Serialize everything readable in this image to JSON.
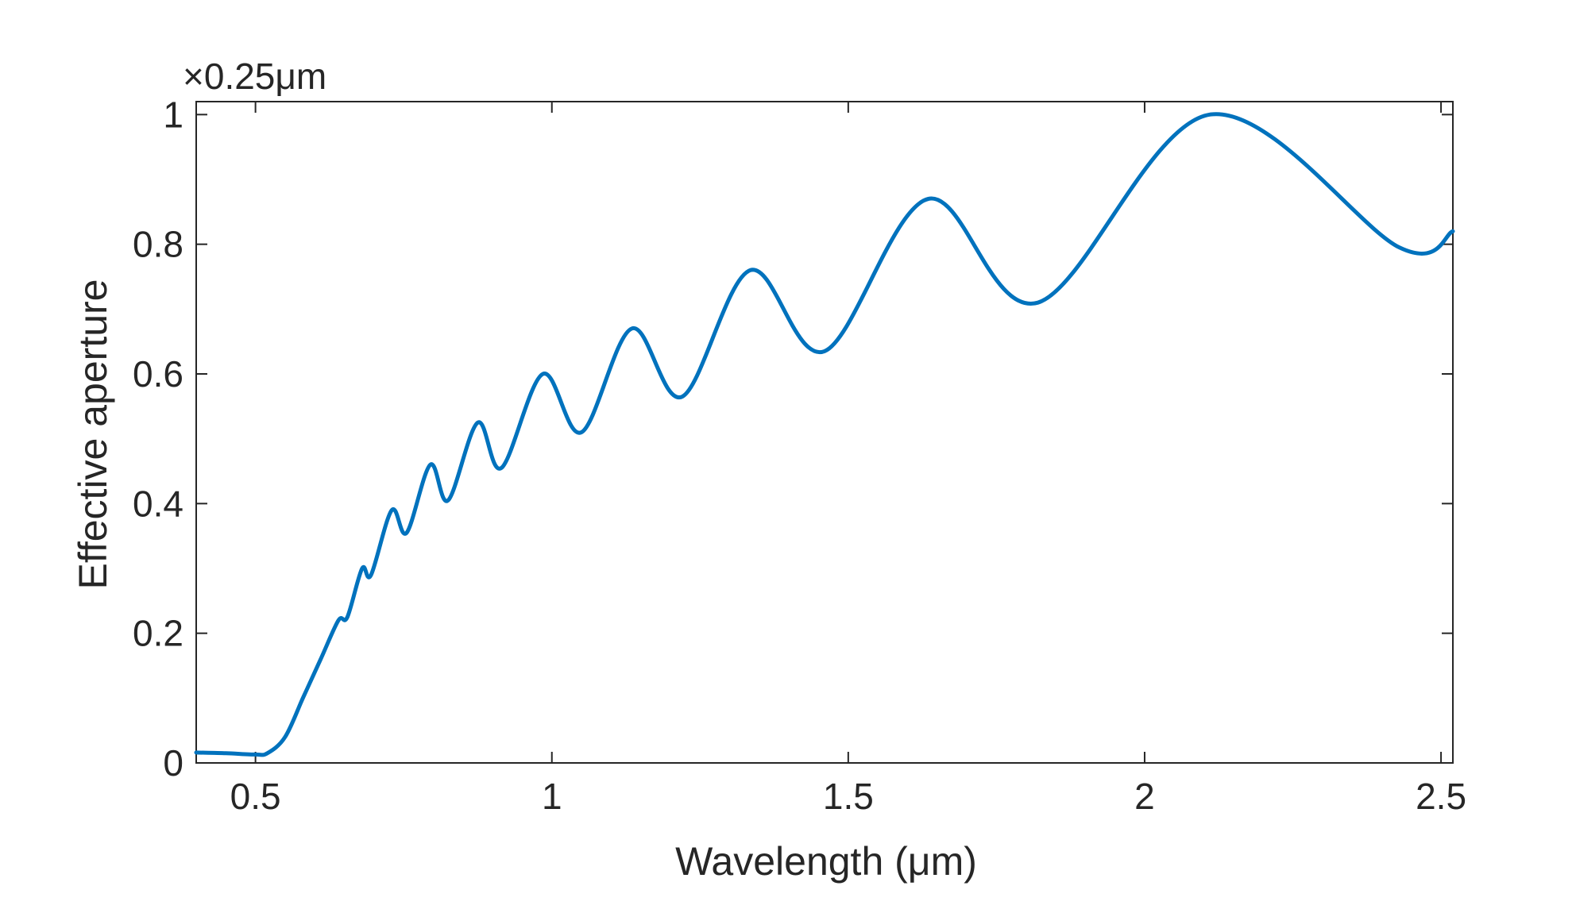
{
  "chart_data": {
    "type": "line",
    "title": "",
    "xlabel": "Wavelength (μm)",
    "ylabel": "Effective aperture",
    "y_scale_label": "×0.25μm",
    "xlim": [
      0.4,
      2.52
    ],
    "ylim": [
      0,
      1.02
    ],
    "xticks": [
      0.5,
      1,
      1.5,
      2,
      2.5
    ],
    "xtick_labels": [
      "0.5",
      "1",
      "1.5",
      "2",
      "2.5"
    ],
    "yticks": [
      0,
      0.2,
      0.4,
      0.6,
      0.8,
      1
    ],
    "ytick_labels": [
      "0",
      "0.2",
      "0.4",
      "0.6",
      "0.8",
      "1"
    ],
    "grid": false,
    "line_color": "#0072BD",
    "axis_color": "#262626",
    "series": [
      {
        "x": [
          0.4,
          0.45,
          0.5,
          0.52,
          0.55,
          0.58,
          0.61,
          0.64,
          0.655,
          0.68,
          0.695,
          0.73,
          0.755,
          0.795,
          0.825,
          0.875,
          0.915,
          0.985,
          1.05,
          1.135,
          1.22,
          1.335,
          1.46,
          1.635,
          1.82,
          2.11,
          2.43,
          2.52
        ],
        "y": [
          0.016,
          0.015,
          0.013,
          0.015,
          0.04,
          0.1,
          0.16,
          0.22,
          0.225,
          0.3,
          0.29,
          0.39,
          0.355,
          0.46,
          0.405,
          0.525,
          0.455,
          0.6,
          0.51,
          0.67,
          0.565,
          0.76,
          0.635,
          0.87,
          0.71,
          1.0,
          0.795,
          0.82
        ]
      }
    ]
  }
}
